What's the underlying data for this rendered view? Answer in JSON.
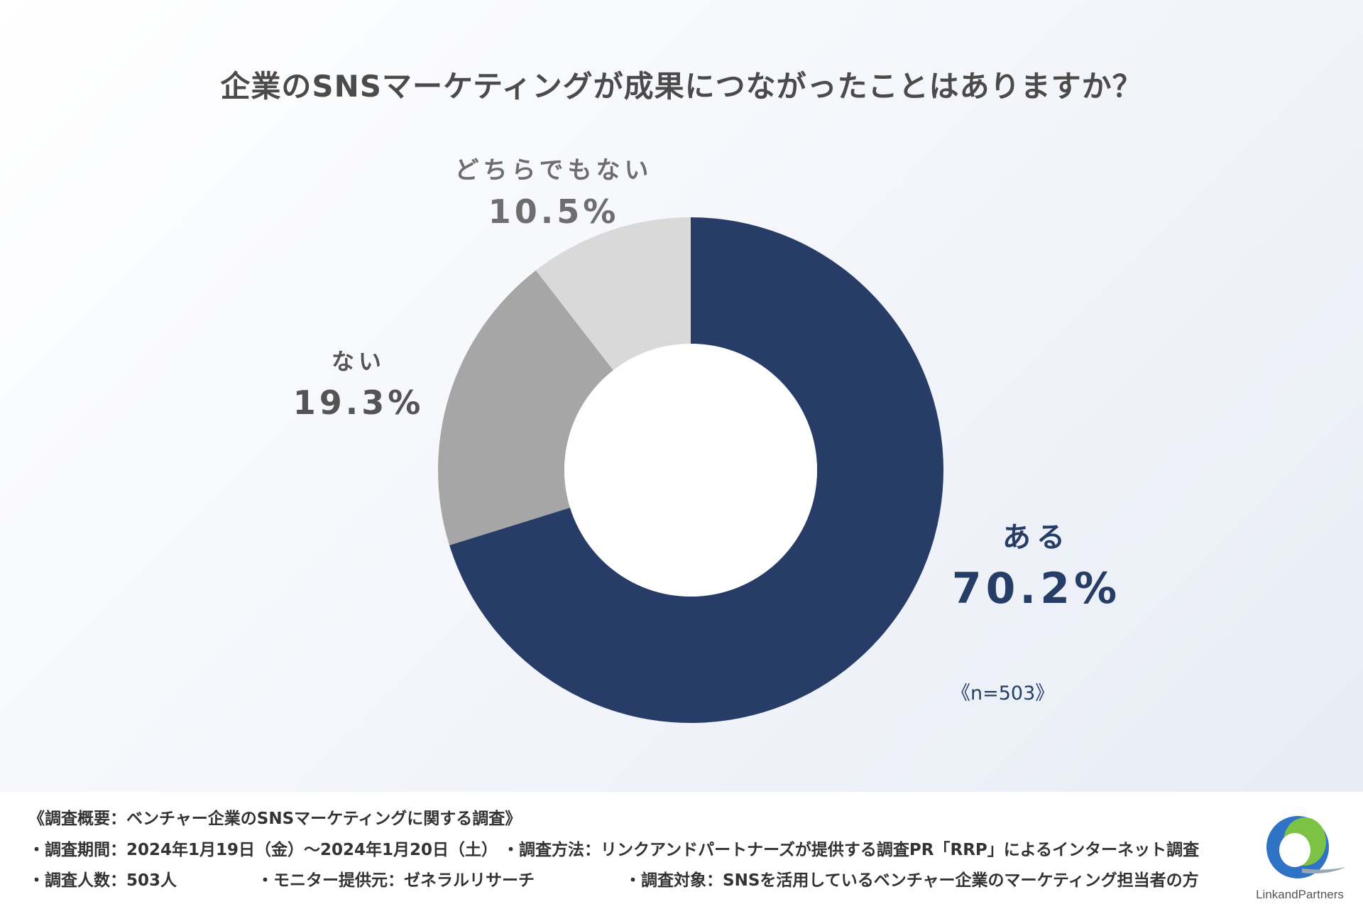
{
  "chart_data": {
    "type": "pie",
    "title": "企業のSNSマーケティングが成果につながったことはありますか？",
    "slices": [
      {
        "label": "ある",
        "value": 70.2,
        "display": "70.2%",
        "color": "#273d67"
      },
      {
        "label": "ない",
        "value": 19.3,
        "display": "19.3%",
        "color": "#a6a6a6"
      },
      {
        "label": "どちらでもない",
        "value": 10.5,
        "display": "10.5%",
        "color": "#d9d9d9"
      }
    ],
    "donut": true,
    "sample_size": "《n=503》"
  },
  "footer": {
    "line1": "《調査概要：ベンチャー企業のSNSマーケティングに関する調査》",
    "period": "・調査期間：2024年1月19日（金）～2024年1月20日（土）",
    "method": "・調査方法：リンクアンドパートナーズが提供する調査PR「RRP」によるインターネット調査",
    "count": "・調査人数：503人",
    "provider": "・モニター提供元：ゼネラルリサーチ",
    "target": "・調査対象：SNSを活用しているベンチャー企業のマーケティング担当者の方"
  },
  "logo": {
    "text": "LinkandPartners",
    "colors": [
      "#2f73c7",
      "#7cc244"
    ]
  }
}
